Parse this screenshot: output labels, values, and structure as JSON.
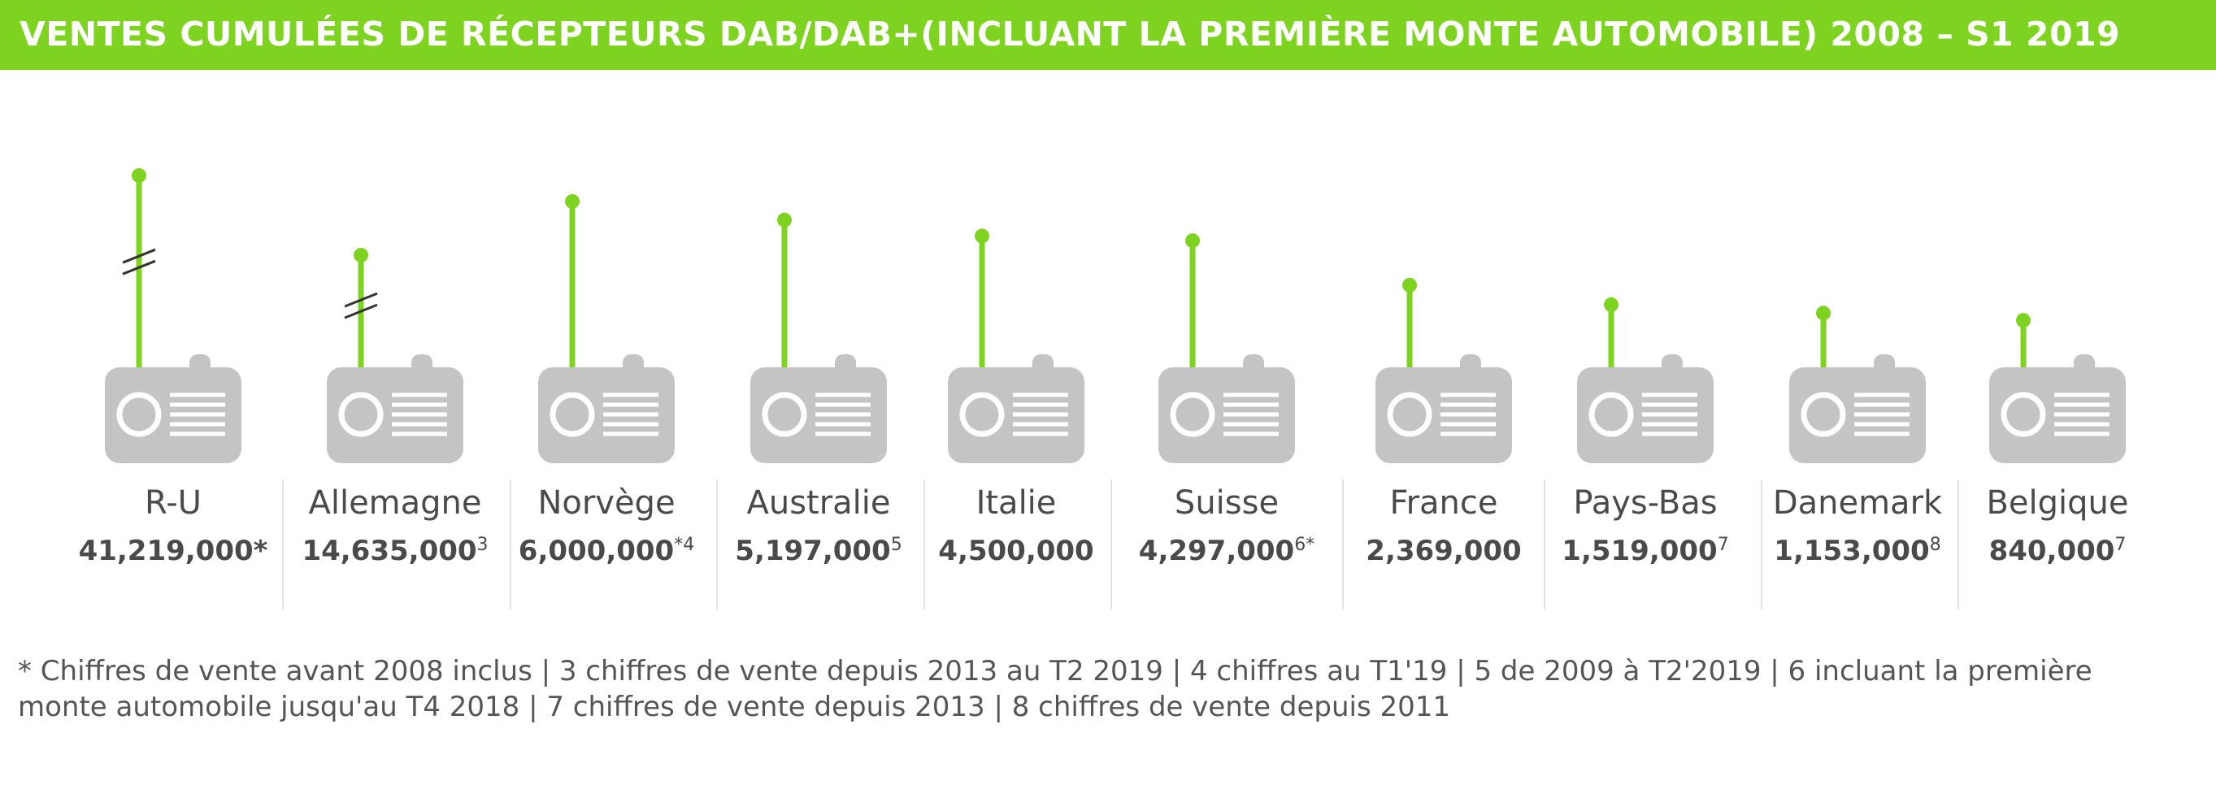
{
  "header": {
    "title": "VENTES CUMULÉES DE RÉCEPTEURS DAB/DAB+(INCLUANT LA PREMIÈRE MONTE AUTOMOBILE) 2008 – S1 2019"
  },
  "footnote": "* Chiffres de vente avant 2008 inclus  | 3 chiffres de vente depuis 2013 au T2 2019 | 4 chiffres au T1'19 | 5 de 2009 à T2'2019 | 6 incluant la première monte automobile jusqu'au T4 2018 | 7 chiffres de vente depuis 2013 | 8 chiffres de vente depuis 2011",
  "colors": {
    "accent": "#7ed321",
    "radio": "#c4c4c4",
    "text": "#555555",
    "label_text": "#4a4a4a",
    "divider": "#e3e3e3"
  },
  "icons": {
    "radio": "radio-icon",
    "break_mark": "axis-break-icon"
  },
  "chart_data": {
    "type": "bar",
    "title": "VENTES CUMULÉES DE RÉCEPTEURS DAB/DAB+(INCLUANT LA PREMIÈRE MONTE AUTOMOBILE) 2008 – S1 2019",
    "categories": [
      "R-U",
      "Allemagne",
      "Norvège",
      "Australie",
      "Italie",
      "Suisse",
      "France",
      "Pays-Bas",
      "Danemark",
      "Belgique"
    ],
    "values": [
      41219000,
      14635000,
      6000000,
      5197000,
      4500000,
      4297000,
      2369000,
      1519000,
      1153000,
      840000
    ],
    "value_labels": [
      "41,219,000",
      "14,635,000",
      "6,000,000",
      "5,197,000",
      "4,500,000",
      "4,297,000",
      "2,369,000",
      "1,519,000",
      "1,153,000",
      "840,000"
    ],
    "value_suffixes": [
      "*",
      "3",
      "*4",
      "5",
      "",
      "6*",
      "",
      "7",
      "8",
      "7"
    ],
    "axis_break": [
      true,
      true,
      false,
      false,
      false,
      false,
      false,
      false,
      false,
      false
    ],
    "display_scale_max": 6000000,
    "xlabel": "",
    "ylabel": ""
  }
}
